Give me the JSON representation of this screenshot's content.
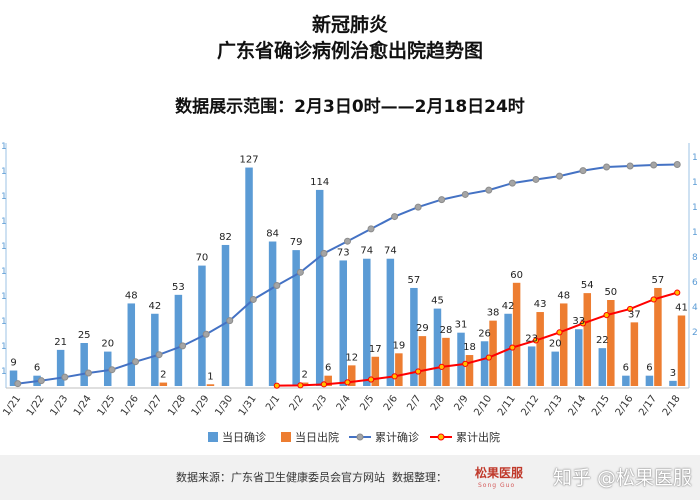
{
  "chart_data": {
    "type": "bar+line",
    "title": "新冠肺炎",
    "subtitle": "广东省确诊病例治愈出院趋势图",
    "range_text": "数据展示范围：2月3日0时——2月18日24时",
    "categories": [
      "1/21",
      "1/22",
      "1/23",
      "1/24",
      "1/25",
      "1/26",
      "1/27",
      "1/28",
      "1/29",
      "1/30",
      "1/31",
      "2/1",
      "2/2",
      "2/3",
      "2/4",
      "2/5",
      "2/6",
      "2/7",
      "2/8",
      "2/9",
      "2/10",
      "2/11",
      "2/12",
      "2/13",
      "2/14",
      "2/15",
      "2/16",
      "2/17",
      "2/18"
    ],
    "series": [
      {
        "name": "当日确诊",
        "type": "bar",
        "color": "#5b9bd5",
        "values": [
          9,
          6,
          21,
          25,
          20,
          48,
          42,
          53,
          70,
          82,
          127,
          84,
          79,
          114,
          73,
          74,
          74,
          57,
          45,
          31,
          26,
          42,
          23,
          20,
          33,
          22,
          6,
          6,
          3
        ]
      },
      {
        "name": "当日出院",
        "type": "bar",
        "color": "#ed7d31",
        "values": [
          null,
          null,
          null,
          null,
          null,
          null,
          2,
          null,
          1,
          null,
          null,
          null,
          2,
          6,
          12,
          17,
          19,
          29,
          28,
          18,
          38,
          60,
          43,
          48,
          54,
          50,
          37,
          57,
          41
        ]
      },
      {
        "name": "累计确诊",
        "type": "line",
        "color": "#4472c4",
        "values": [
          14,
          32,
          53,
          78,
          98,
          146,
          188,
          241,
          311,
          393,
          520,
          604,
          683,
          797,
          870,
          944,
          1018,
          1075,
          1120,
          1151,
          1177,
          1219,
          1241,
          1261,
          1294,
          1316,
          1322,
          1328,
          1331
        ]
      },
      {
        "name": "累计出院",
        "type": "line",
        "color": "#ff0000",
        "values": [
          null,
          null,
          null,
          null,
          null,
          null,
          null,
          null,
          null,
          null,
          null,
          2,
          4,
          10,
          22,
          39,
          58,
          87,
          115,
          133,
          171,
          231,
          274,
          322,
          376,
          426,
          463,
          520,
          561
        ]
      }
    ],
    "bar_label_max": 140,
    "line_axis_max": 1400,
    "left_axis_ticks": [
      "1",
      "1",
      "1",
      "1",
      "1",
      "1",
      "1",
      "1",
      "1",
      "1"
    ],
    "right_axis_ticks": [
      "1",
      "1",
      "1",
      "1",
      "8",
      "6",
      "4",
      "2",
      ""
    ]
  },
  "legend": [
    {
      "name": "当日确诊",
      "kind": "bar",
      "color": "#5b9bd5"
    },
    {
      "name": "当日出院",
      "kind": "bar",
      "color": "#ed7d31"
    },
    {
      "name": "累计确诊",
      "kind": "line",
      "color": "#4472c4"
    },
    {
      "name": "累计出院",
      "kind": "line",
      "color": "#ff0000"
    }
  ],
  "footer": {
    "source": "数据来源：广东省卫生健康委员会官方网站",
    "organizer": "数据整理：",
    "brand": "松果医服",
    "brand_sub": "Song Guo",
    "watermark": "知乎 @松果医服"
  }
}
